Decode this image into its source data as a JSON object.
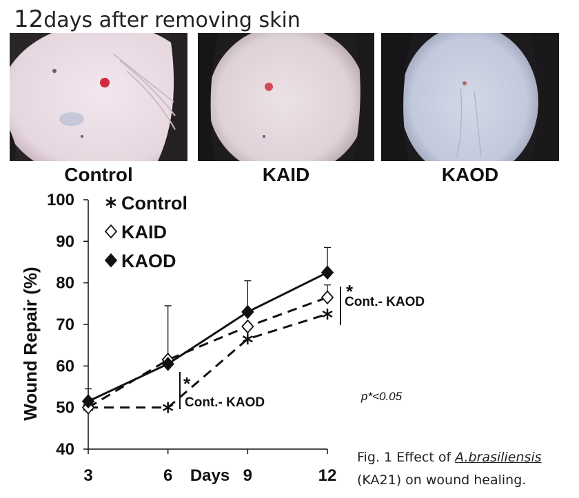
{
  "header": {
    "number": "12",
    "title": "days after removing skin"
  },
  "photos": [
    {
      "label": "Control",
      "tone": "#e6d7df",
      "wound": "#cf2a3f"
    },
    {
      "label": "KAID",
      "tone": "#ded2d8",
      "wound": "#d24a55"
    },
    {
      "label": "KAOD",
      "tone": "#c2c9dc",
      "wound": "#b2666e"
    }
  ],
  "chart_data": {
    "type": "line",
    "x": [
      3,
      6,
      9,
      12
    ],
    "xlabel": "Days",
    "ylabel": "Wound Repair (%)",
    "ylim": [
      40,
      100
    ],
    "yticks": [
      40,
      50,
      60,
      70,
      80,
      90,
      100
    ],
    "xticks": [
      "3",
      "6",
      "9",
      "12"
    ],
    "series": [
      {
        "name": "Control",
        "values": [
          50,
          50,
          66.5,
          72.5
        ],
        "marker": "asterisk",
        "line": "dashed"
      },
      {
        "name": "KAID",
        "values": [
          50,
          61.5,
          69.5,
          76.5
        ],
        "marker": "open-diamond",
        "line": "dashed",
        "error_up": [
          0,
          0,
          0,
          3
        ]
      },
      {
        "name": "KAOD",
        "values": [
          51.5,
          60.5,
          73,
          82.5
        ],
        "marker": "filled-diamond",
        "line": "solid",
        "error_up": [
          3,
          14,
          7.5,
          6
        ]
      }
    ],
    "annotations": [
      {
        "star": "*",
        "text": "Cont.- KAOD",
        "x": 6
      },
      {
        "star": "*",
        "text": "Cont.- KAOD",
        "x": 12
      }
    ],
    "legend": "top-left"
  },
  "note": "p*<0.05",
  "caption": {
    "line1_prefix": "Fig. 1 Effect of ",
    "species": "A.brasiliensis",
    "line2": "(KA21) on wound healing."
  }
}
